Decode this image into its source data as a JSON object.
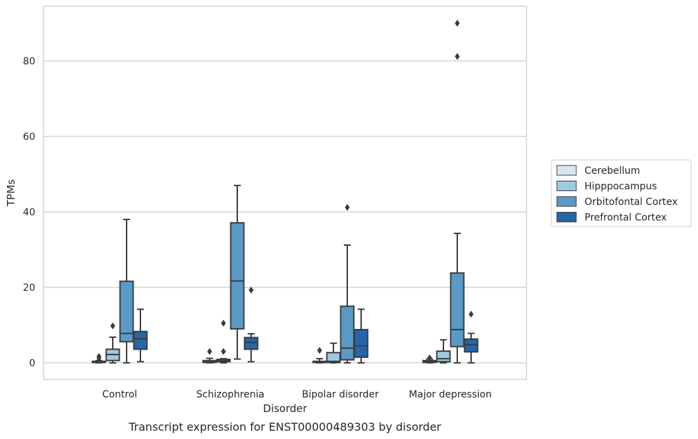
{
  "chart_data": {
    "type": "box",
    "caption": "Transcript expression for ENST00000489303 by disorder",
    "xlabel": "Disorder",
    "ylabel": "TPMs",
    "ylim": [
      -4.5,
      94
    ],
    "yticks": [
      0,
      20,
      40,
      60,
      80
    ],
    "grid": "horizontal",
    "legend_position": "right",
    "categories": [
      "Control",
      "Schizophrenia",
      "Bipolar disorder",
      "Major depression"
    ],
    "series": [
      {
        "name": "Cerebellum",
        "color": "#d9e6f2",
        "boxes": [
          {
            "whisker_low": 0,
            "q1": 0.1,
            "median": 0.2,
            "q3": 0.4,
            "whisker_high": 0.6,
            "outliers": [
              1.2,
              1.7
            ]
          },
          {
            "whisker_low": 0,
            "q1": 0.1,
            "median": 0.3,
            "q3": 0.6,
            "whisker_high": 1.2,
            "outliers": [
              3.0
            ]
          },
          {
            "whisker_low": 0,
            "q1": 0.1,
            "median": 0.2,
            "q3": 0.4,
            "whisker_high": 1.1,
            "outliers": [
              3.3
            ]
          },
          {
            "whisker_low": 0,
            "q1": 0.1,
            "median": 0.3,
            "q3": 0.6,
            "whisker_high": 1.0,
            "outliers": [
              1.3
            ]
          }
        ]
      },
      {
        "name": "Hipppocampus",
        "color": "#9ecae1",
        "boxes": [
          {
            "whisker_low": 0,
            "q1": 0.6,
            "median": 2.2,
            "q3": 3.6,
            "whisker_high": 6.8,
            "outliers": [
              9.8
            ]
          },
          {
            "whisker_low": 0,
            "q1": 0.3,
            "median": 0.6,
            "q3": 0.9,
            "whisker_high": 1.1,
            "outliers": [
              3.0,
              10.5
            ]
          },
          {
            "whisker_low": 0,
            "q1": 0.1,
            "median": 0.4,
            "q3": 2.7,
            "whisker_high": 5.2,
            "outliers": []
          },
          {
            "whisker_low": 0,
            "q1": 0.3,
            "median": 1.1,
            "q3": 3.1,
            "whisker_high": 6.1,
            "outliers": []
          }
        ]
      },
      {
        "name": "Orbitofontal Cortex",
        "color": "#5a9ac6",
        "boxes": [
          {
            "whisker_low": 0,
            "q1": 5.6,
            "median": 7.8,
            "q3": 21.6,
            "whisker_high": 38.0,
            "outliers": []
          },
          {
            "whisker_low": 1.0,
            "q1": 9.0,
            "median": 21.7,
            "q3": 37.1,
            "whisker_high": 47.0,
            "outliers": []
          },
          {
            "whisker_low": 0,
            "q1": 0.8,
            "median": 3.9,
            "q3": 15.0,
            "whisker_high": 31.2,
            "outliers": [
              41.2
            ]
          },
          {
            "whisker_low": 0,
            "q1": 4.3,
            "median": 8.8,
            "q3": 23.8,
            "whisker_high": 34.3,
            "outliers": [
              81.2,
              90.0
            ]
          }
        ]
      },
      {
        "name": "Prefrontal Cortex",
        "color": "#2467a8",
        "boxes": [
          {
            "whisker_low": 0.3,
            "q1": 3.6,
            "median": 6.4,
            "q3": 8.3,
            "whisker_high": 14.2,
            "outliers": []
          },
          {
            "whisker_low": 0.3,
            "q1": 3.6,
            "median": 5.4,
            "q3": 6.7,
            "whisker_high": 7.7,
            "outliers": [
              19.3
            ]
          },
          {
            "whisker_low": 0,
            "q1": 1.5,
            "median": 4.5,
            "q3": 8.8,
            "whisker_high": 14.2,
            "outliers": []
          },
          {
            "whisker_low": 0,
            "q1": 2.9,
            "median": 4.8,
            "q3": 6.3,
            "whisker_high": 7.8,
            "outliers": [
              12.9
            ]
          }
        ]
      }
    ]
  }
}
